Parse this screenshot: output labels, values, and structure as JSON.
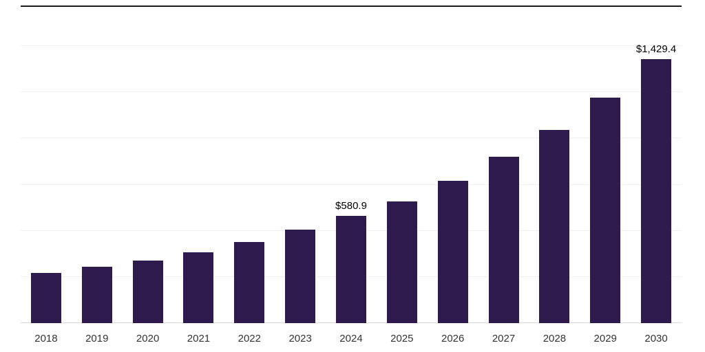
{
  "chart_data": {
    "type": "bar",
    "title": "",
    "xlabel": "",
    "ylabel": "",
    "categories": [
      "2018",
      "2019",
      "2020",
      "2021",
      "2022",
      "2023",
      "2024",
      "2025",
      "2026",
      "2027",
      "2028",
      "2029",
      "2030"
    ],
    "values": [
      270,
      305,
      340,
      385,
      440,
      505,
      580.9,
      660,
      770,
      900,
      1045,
      1220,
      1429.4
    ],
    "ylim": [
      0,
      1500
    ],
    "gridline_step": 250,
    "grid": "horizontal-only",
    "y_tick_labels_visible": false,
    "legend": "none",
    "data_labels": [
      {
        "category": "2024",
        "text": "$580.9"
      },
      {
        "category": "2030",
        "text": "$1,429.4"
      }
    ]
  },
  "colors": {
    "bar": "#2e1a4d",
    "gridline": "#f0f0f0",
    "axis_line": "#d8d8d8",
    "top_rule": "#1a1a1a",
    "data_label": "#000000",
    "tick_label": "#333333"
  }
}
